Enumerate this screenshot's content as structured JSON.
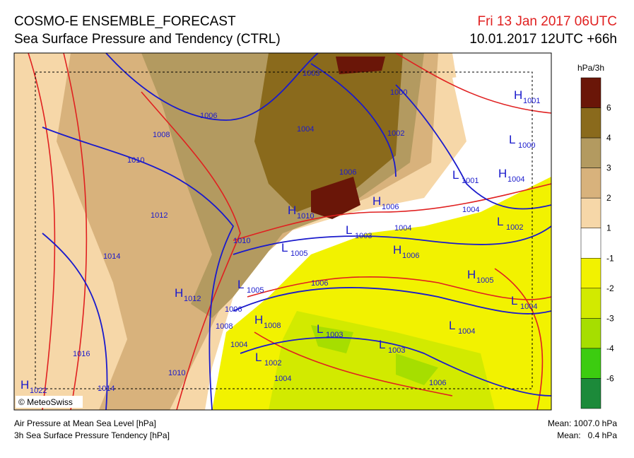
{
  "header": {
    "title": "COSMO-E ENSEMBLE_FORECAST",
    "subtitle": "Sea Surface Pressure and Tendency (CTRL)",
    "valid_time": "Fri 13 Jan 2017 06UTC",
    "run": "10.01.2017 12UTC +66h"
  },
  "legend": {
    "title": "hPa/3h",
    "labels": [
      "6",
      "4",
      "3",
      "2",
      "1",
      "-1",
      "-2",
      "-3",
      "-4",
      "-6"
    ],
    "colors": [
      "#6a1608",
      "#8a6a1c",
      "#b39a60",
      "#d8b27c",
      "#f6d7a8",
      "#ffffff",
      "#f2f200",
      "#d2ea00",
      "#a6de00",
      "#3ccc10",
      "#1c8a3a"
    ]
  },
  "isobar_labels": [
    "1003",
    "1000",
    "1006",
    "1004",
    "1002",
    "1008",
    "1010",
    "1006",
    "1004",
    "1012",
    "1004",
    "1010",
    "1014",
    "1006",
    "1006",
    "1008",
    "1004",
    "1016",
    "1010",
    "1004",
    "1006",
    "1014"
  ],
  "pressure_centers": [
    {
      "symbol": "H",
      "value": "1001"
    },
    {
      "symbol": "L",
      "value": "1000"
    },
    {
      "symbol": "L",
      "value": "1001"
    },
    {
      "symbol": "H",
      "value": "1004"
    },
    {
      "symbol": "H",
      "value": "1010"
    },
    {
      "symbol": "H",
      "value": "1006"
    },
    {
      "symbol": "L",
      "value": "1002"
    },
    {
      "symbol": "L",
      "value": "1003"
    },
    {
      "symbol": "L",
      "value": "1005"
    },
    {
      "symbol": "H",
      "value": "1006"
    },
    {
      "symbol": "H",
      "value": "1005"
    },
    {
      "symbol": "L",
      "value": "1005"
    },
    {
      "symbol": "H",
      "value": "1012"
    },
    {
      "symbol": "L",
      "value": "1004"
    },
    {
      "symbol": "H",
      "value": "1008"
    },
    {
      "symbol": "L",
      "value": "1003"
    },
    {
      "symbol": "L",
      "value": "1004"
    },
    {
      "symbol": "L",
      "value": "1003"
    },
    {
      "symbol": "L",
      "value": "1002"
    },
    {
      "symbol": "H",
      "value": "1022"
    }
  ],
  "copyright": "© MeteoSwiss",
  "footer": {
    "left": [
      "Air Pressure at Mean Sea Level [hPa]",
      "3h Sea Surface Pressure Tendency [hPa]"
    ],
    "right": [
      "Mean: 1007.0 hPa",
      "Mean:   0.4 hPa"
    ]
  }
}
